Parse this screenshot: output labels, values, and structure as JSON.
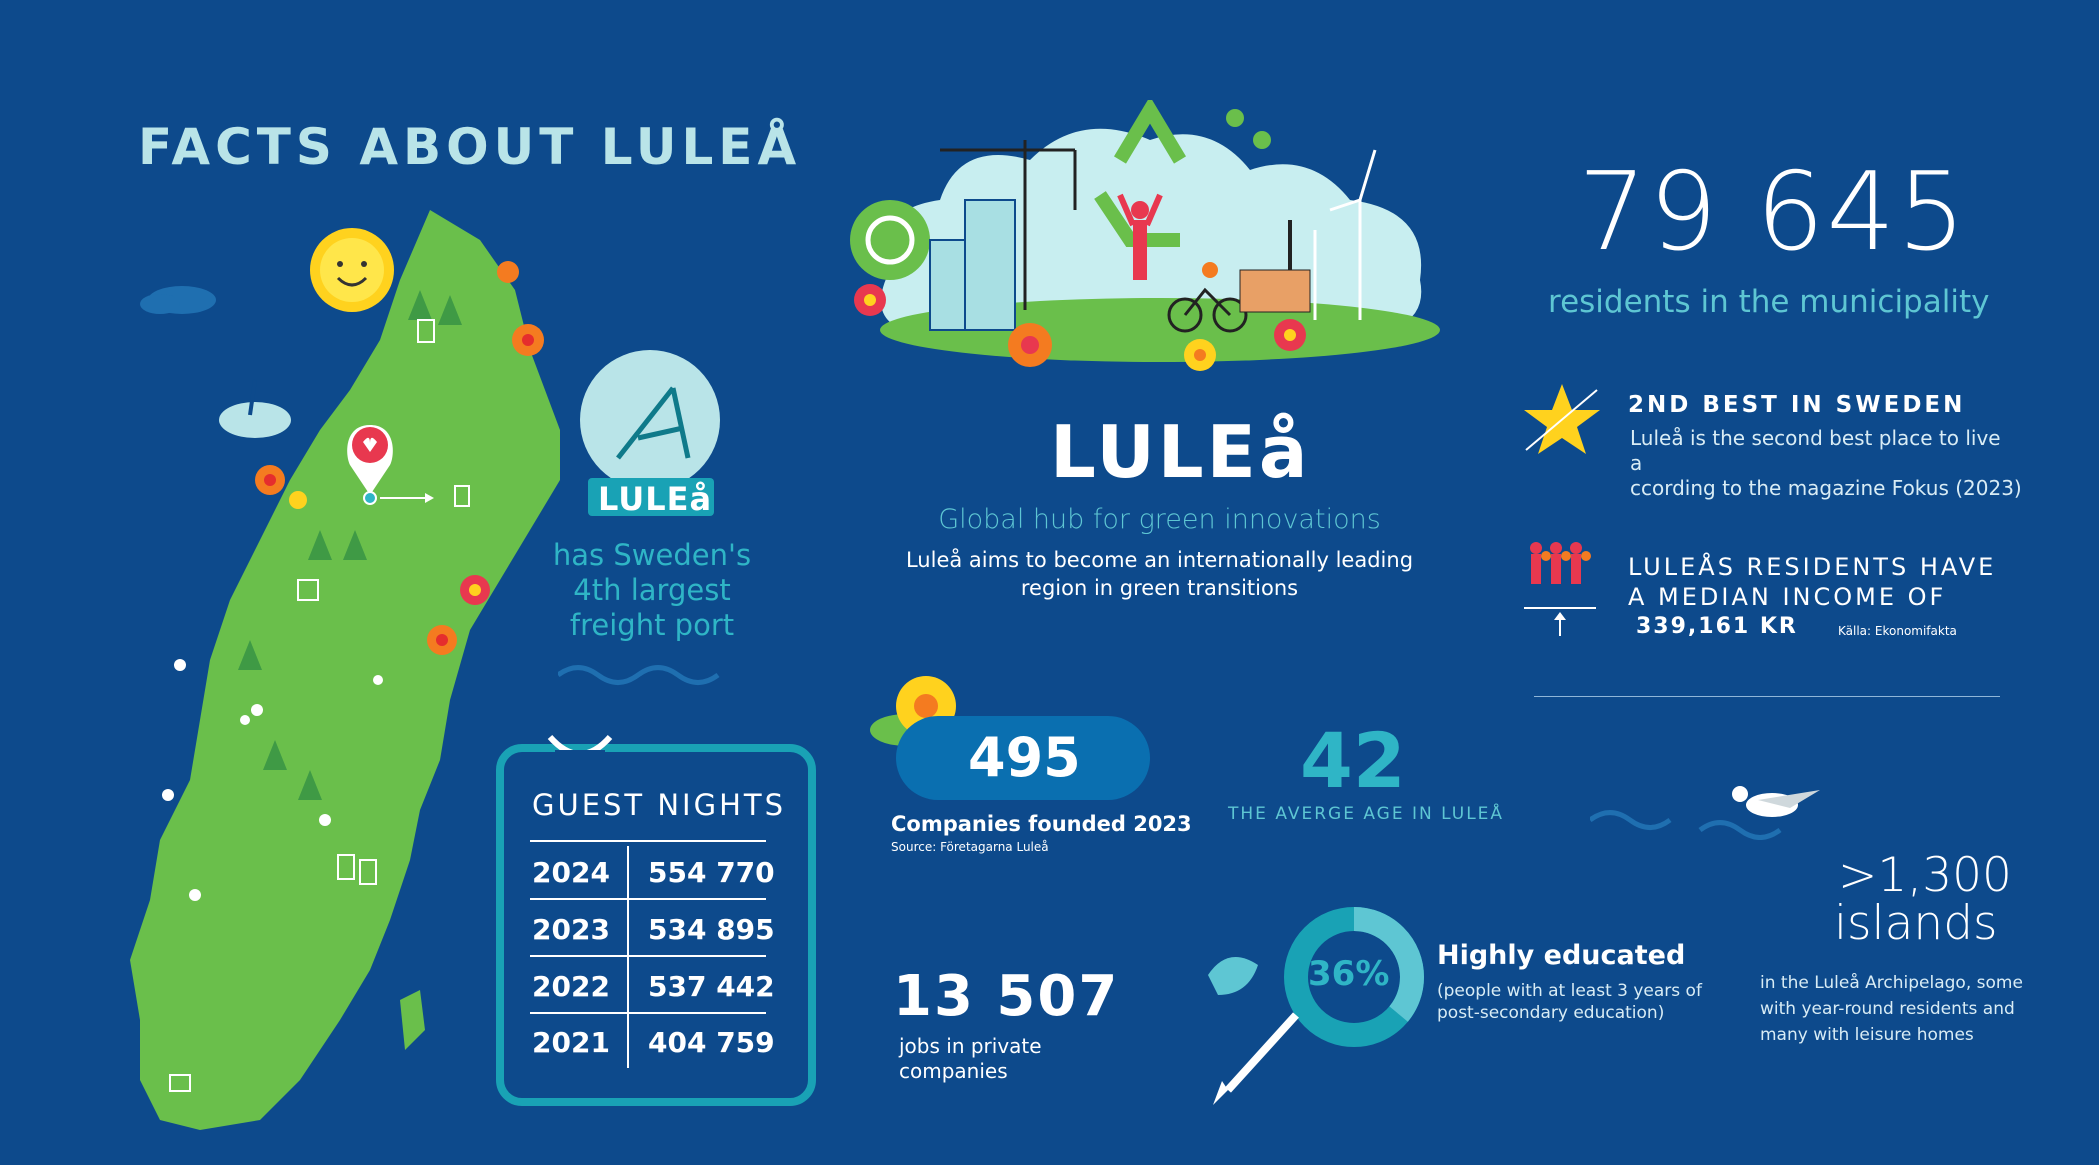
{
  "title": "FACTS ABOUT LULEÅ",
  "map": {
    "logo_text": "LULEå",
    "port_text": [
      "has Sweden's",
      "4th largest",
      "freight port"
    ]
  },
  "guest_nights": {
    "heading": "GUEST NIGHTS",
    "rows": [
      {
        "year": "2024",
        "value": "554 770"
      },
      {
        "year": "2023",
        "value": "534 895"
      },
      {
        "year": "2022",
        "value": "537 442"
      },
      {
        "year": "2021",
        "value": "404 759"
      }
    ]
  },
  "center": {
    "logo": "LULEå",
    "tagline": "Global hub for green innovations",
    "aim_line1": "Luleå aims to become an internationally leading",
    "aim_line2": "region in green transitions"
  },
  "companies": {
    "value": "495",
    "label": "Companies founded 2023",
    "source": "Source: Företagarna Luleå"
  },
  "age": {
    "value": "42",
    "label": "THE AVERGE AGE IN LULEÅ"
  },
  "jobs": {
    "value": "13 507",
    "label_line1": "jobs in private",
    "label_line2": "companies"
  },
  "education": {
    "percent": "36%",
    "percent_fraction": 0.36,
    "heading": "Highly educated",
    "line1": "(people with at least 3 years of",
    "line2": "post-secondary education)"
  },
  "residents": {
    "value": "79 645",
    "label": "residents in the municipality"
  },
  "ranking": {
    "heading": "2ND BEST IN SWEDEN",
    "line1": "Luleå is the second best place to live",
    "line2": "a",
    "line3": "ccording to the magazine Fokus (2023)"
  },
  "income": {
    "line1": "LULEÅS RESIDENTS HAVE",
    "line2": "A MEDIAN INCOME OF",
    "value": "339,161 KR",
    "source": "Källa: Ekonomifakta"
  },
  "islands": {
    "value": ">1,300",
    "word": "islands",
    "line1": "in the Luleå Archipelago, some",
    "line2": "with year-round residents and",
    "line3": "many with leisure homes"
  },
  "colors": {
    "background": "#0d4a8c",
    "accent_teal": "#2fb5c6",
    "map_green": "#6abf4b",
    "pill": "#0a6fb0"
  }
}
